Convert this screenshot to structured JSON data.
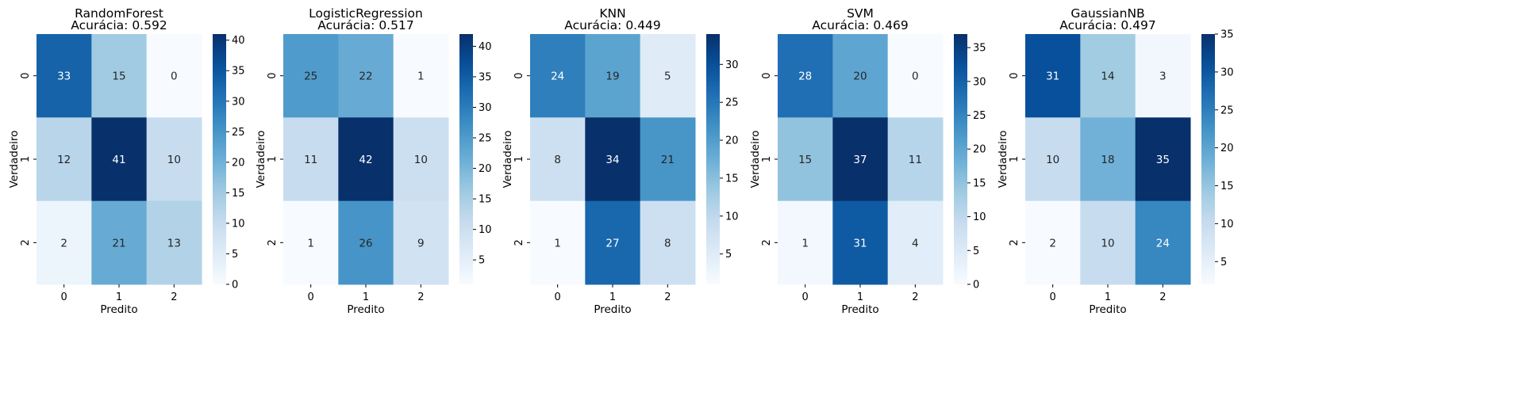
{
  "chart_data": [
    {
      "type": "heatmap",
      "title": "RandomForest",
      "subtitle": "Acurácia: 0.592",
      "xlabel": "Predito",
      "ylabel": "Verdadeiro",
      "x_categories": [
        "0",
        "1",
        "2"
      ],
      "y_categories": [
        "0",
        "1",
        "2"
      ],
      "matrix": [
        [
          33,
          15,
          0
        ],
        [
          12,
          41,
          10
        ],
        [
          2,
          21,
          13
        ]
      ],
      "colorbar": {
        "min": 0,
        "max": 41,
        "ticks": [
          0,
          5,
          10,
          15,
          20,
          25,
          30,
          35,
          40
        ]
      }
    },
    {
      "type": "heatmap",
      "title": "LogisticRegression",
      "subtitle": "Acurácia: 0.517",
      "xlabel": "Predito",
      "ylabel": "Verdadeiro",
      "x_categories": [
        "0",
        "1",
        "2"
      ],
      "y_categories": [
        "0",
        "1",
        "2"
      ],
      "matrix": [
        [
          25,
          22,
          1
        ],
        [
          11,
          42,
          10
        ],
        [
          1,
          26,
          9
        ]
      ],
      "colorbar": {
        "min": 1,
        "max": 42,
        "ticks": [
          5,
          10,
          15,
          20,
          25,
          30,
          35,
          40
        ]
      }
    },
    {
      "type": "heatmap",
      "title": "KNN",
      "subtitle": "Acurácia: 0.449",
      "xlabel": "Predito",
      "ylabel": "Verdadeiro",
      "x_categories": [
        "0",
        "1",
        "2"
      ],
      "y_categories": [
        "0",
        "1",
        "2"
      ],
      "matrix": [
        [
          24,
          19,
          5
        ],
        [
          8,
          34,
          21
        ],
        [
          1,
          27,
          8
        ]
      ],
      "colorbar": {
        "min": 1,
        "max": 34,
        "ticks": [
          5,
          10,
          15,
          20,
          25,
          30
        ]
      }
    },
    {
      "type": "heatmap",
      "title": "SVM",
      "subtitle": "Acurácia: 0.469",
      "xlabel": "Predito",
      "ylabel": "Verdadeiro",
      "x_categories": [
        "0",
        "1",
        "2"
      ],
      "y_categories": [
        "0",
        "1",
        "2"
      ],
      "matrix": [
        [
          28,
          20,
          0
        ],
        [
          15,
          37,
          11
        ],
        [
          1,
          31,
          4
        ]
      ],
      "colorbar": {
        "min": 0,
        "max": 37,
        "ticks": [
          0,
          5,
          10,
          15,
          20,
          25,
          30,
          35
        ]
      }
    },
    {
      "type": "heatmap",
      "title": "GaussianNB",
      "subtitle": "Acurácia: 0.497",
      "xlabel": "Predito",
      "ylabel": "Verdadeiro",
      "x_categories": [
        "0",
        "1",
        "2"
      ],
      "y_categories": [
        "0",
        "1",
        "2"
      ],
      "matrix": [
        [
          31,
          14,
          3
        ],
        [
          10,
          18,
          35
        ],
        [
          2,
          10,
          24
        ]
      ],
      "colorbar": {
        "min": 2,
        "max": 35,
        "ticks": [
          5,
          10,
          15,
          20,
          25,
          30,
          35
        ]
      }
    }
  ],
  "colormap": "Blues"
}
